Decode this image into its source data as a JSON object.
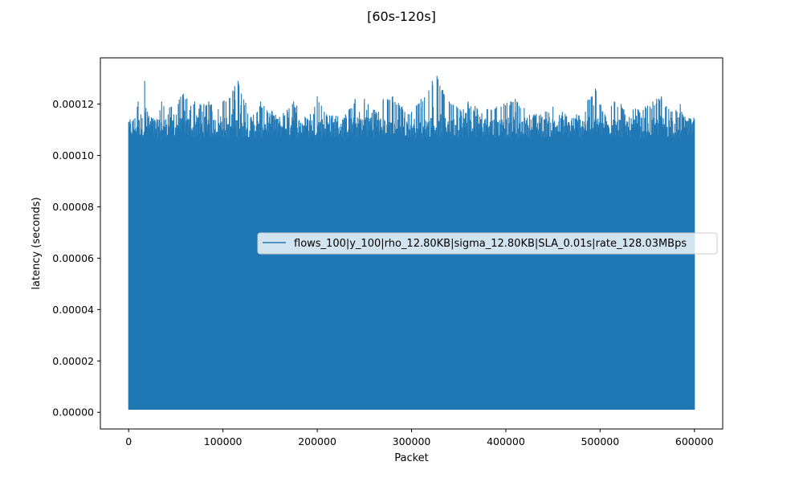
{
  "chart_data": {
    "type": "area",
    "title": "[60s-120s]",
    "xlabel": "Packet",
    "ylabel": "latency (seconds)",
    "xlim": [
      -30000,
      630000
    ],
    "ylim": [
      -6.5e-06,
      0.000138
    ],
    "x_ticks": [
      0,
      100000,
      200000,
      300000,
      400000,
      500000,
      600000
    ],
    "x_tick_labels": [
      "0",
      "100000",
      "200000",
      "300000",
      "400000",
      "500000",
      "600000"
    ],
    "y_ticks": [
      0,
      2e-05,
      4e-05,
      6e-05,
      8e-05,
      0.0001,
      0.00012
    ],
    "y_tick_labels": [
      "0.00000",
      "0.00002",
      "0.00004",
      "0.00006",
      "0.00008",
      "0.00010",
      "0.00012"
    ],
    "legend_position": "center-right",
    "series": [
      {
        "name": "flows_100|y_100|rho_12.80KB|sigma_12.80KB|SLA_0.01s|rate_128.03MBps",
        "color": "#1f77b4",
        "x_range": [
          0,
          600000
        ],
        "min_latency": 1e-06,
        "base_latency_range": [
          0.000107,
          0.000115
        ],
        "peak_latency": 0.000131,
        "upper_envelope": [
          [
            0,
            0.000113
          ],
          [
            5000,
            0.000114
          ],
          [
            10000,
            0.000121
          ],
          [
            13000,
            0.000116
          ],
          [
            17000,
            0.000129
          ],
          [
            20000,
            0.000117
          ],
          [
            30000,
            0.000114
          ],
          [
            35000,
            0.000121
          ],
          [
            45000,
            0.000119
          ],
          [
            58000,
            0.000124
          ],
          [
            70000,
            0.000121
          ],
          [
            85000,
            0.000121
          ],
          [
            95000,
            0.000118
          ],
          [
            100000,
            0.000121
          ],
          [
            116000,
            0.000129
          ],
          [
            130000,
            0.000115
          ],
          [
            140000,
            0.000121
          ],
          [
            160000,
            0.000115
          ],
          [
            175000,
            0.000121
          ],
          [
            190000,
            0.000114
          ],
          [
            200000,
            0.000123
          ],
          [
            210000,
            0.000116
          ],
          [
            230000,
            0.000116
          ],
          [
            240000,
            0.000122
          ],
          [
            250000,
            0.000122
          ],
          [
            265000,
            0.000117
          ],
          [
            270000,
            0.000122
          ],
          [
            280000,
            0.000123
          ],
          [
            290000,
            0.000119
          ],
          [
            300000,
            0.000117
          ],
          [
            310000,
            0.000122
          ],
          [
            322000,
            0.000129
          ],
          [
            327000,
            0.000131
          ],
          [
            340000,
            0.000121
          ],
          [
            355000,
            0.000118
          ],
          [
            360000,
            0.000121
          ],
          [
            380000,
            0.000118
          ],
          [
            390000,
            0.000119
          ],
          [
            410000,
            0.000122
          ],
          [
            430000,
            0.000116
          ],
          [
            450000,
            0.000119
          ],
          [
            460000,
            0.000117
          ],
          [
            475000,
            0.000116
          ],
          [
            495000,
            0.000126
          ],
          [
            505000,
            0.000116
          ],
          [
            515000,
            0.000121
          ],
          [
            540000,
            0.000118
          ],
          [
            548000,
            0.000119
          ],
          [
            560000,
            0.000122
          ],
          [
            565000,
            0.000123
          ],
          [
            575000,
            0.000117
          ],
          [
            585000,
            0.00012
          ],
          [
            590000,
            0.000115
          ],
          [
            600000,
            0.000114
          ]
        ]
      }
    ]
  }
}
